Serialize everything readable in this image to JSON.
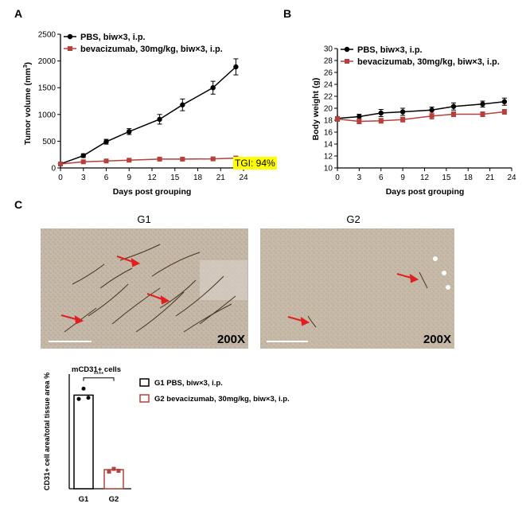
{
  "panels": {
    "a": "A",
    "b": "B",
    "c": "C"
  },
  "chart_data": [
    {
      "type": "line",
      "panel": "A",
      "xlabel": "Days post grouping",
      "ylabel_prefix": "Tumor volume (mm",
      "ylabel_sup": "3",
      "ylabel_suffix": ")",
      "xlim": [
        0,
        24
      ],
      "ylim": [
        0,
        2500
      ],
      "xticks": [
        0,
        3,
        6,
        9,
        12,
        15,
        18,
        21,
        24
      ],
      "yticks": [
        0,
        500,
        1000,
        1500,
        2000,
        2500
      ],
      "series": [
        {
          "name_bold": "PBS",
          "name_rest": ", biw×3, i.p.",
          "color": "#000000",
          "marker": "circle",
          "x": [
            0,
            3,
            6,
            9,
            13,
            16,
            20,
            23
          ],
          "y": [
            75,
            230,
            490,
            680,
            910,
            1180,
            1500,
            1890
          ],
          "err": [
            15,
            35,
            45,
            55,
            90,
            110,
            120,
            150
          ]
        },
        {
          "name": "bevacizumab, 30mg/kg, biw×3, i.p.",
          "color": "#b5403c",
          "marker": "square",
          "x": [
            0,
            3,
            6,
            9,
            13,
            16,
            20,
            23
          ],
          "y": [
            75,
            115,
            130,
            145,
            165,
            165,
            170,
            185
          ],
          "err": [
            10,
            15,
            15,
            15,
            20,
            20,
            20,
            25
          ]
        }
      ],
      "annotation": {
        "text": "TGI: 94%",
        "background": "#ffff00"
      }
    },
    {
      "type": "line",
      "panel": "B",
      "xlabel": "Days post grouping",
      "ylabel": "Body weight (g)",
      "xlim": [
        0,
        24
      ],
      "ylim": [
        10,
        30
      ],
      "xticks": [
        0,
        3,
        6,
        9,
        12,
        15,
        18,
        21,
        24
      ],
      "yticks": [
        10,
        12,
        14,
        16,
        18,
        20,
        22,
        24,
        26,
        28,
        30
      ],
      "series": [
        {
          "name_bold": "PBS",
          "name_rest": ", biw×3, i.p.",
          "color": "#000000",
          "marker": "circle",
          "x": [
            0,
            3,
            6,
            9,
            13,
            16,
            20,
            23
          ],
          "y": [
            18.3,
            18.6,
            19.2,
            19.4,
            19.7,
            20.3,
            20.7,
            21.1
          ],
          "err": [
            0.3,
            0.4,
            0.6,
            0.6,
            0.5,
            0.6,
            0.5,
            0.6
          ]
        },
        {
          "name": "bevacizumab, 30mg/kg, biw×3, i.p.",
          "color": "#b5403c",
          "marker": "square",
          "x": [
            0,
            3,
            6,
            9,
            13,
            16,
            20,
            23
          ],
          "y": [
            18.2,
            17.8,
            17.9,
            18.1,
            18.7,
            19.0,
            19.0,
            19.4
          ],
          "err": [
            0.4,
            0.4,
            0.4,
            0.4,
            0.5,
            0.4,
            0.4,
            0.4
          ]
        }
      ]
    },
    {
      "type": "bar",
      "panel": "C",
      "title": "mCD31+ cells",
      "ylabel": "CD31+ cell area/total tissue area %",
      "categories": [
        "G1",
        "G2"
      ],
      "values": [
        2.45,
        0.5
      ],
      "points": [
        [
          2.35,
          2.62,
          2.38
        ],
        [
          0.45,
          0.52,
          0.47
        ]
      ],
      "ylim": [
        0,
        3
      ],
      "significance": "****",
      "legend": [
        {
          "label": "G1 PBS, biw×3, i.p.",
          "color": "#000000"
        },
        {
          "label": "G2 bevacizumab, 30mg/kg, biw×3, i.p.",
          "color": "#b5403c"
        }
      ]
    }
  ],
  "micrographs": [
    {
      "title": "G1",
      "magnification": "200X"
    },
    {
      "title": "G2",
      "magnification": "200X"
    }
  ]
}
